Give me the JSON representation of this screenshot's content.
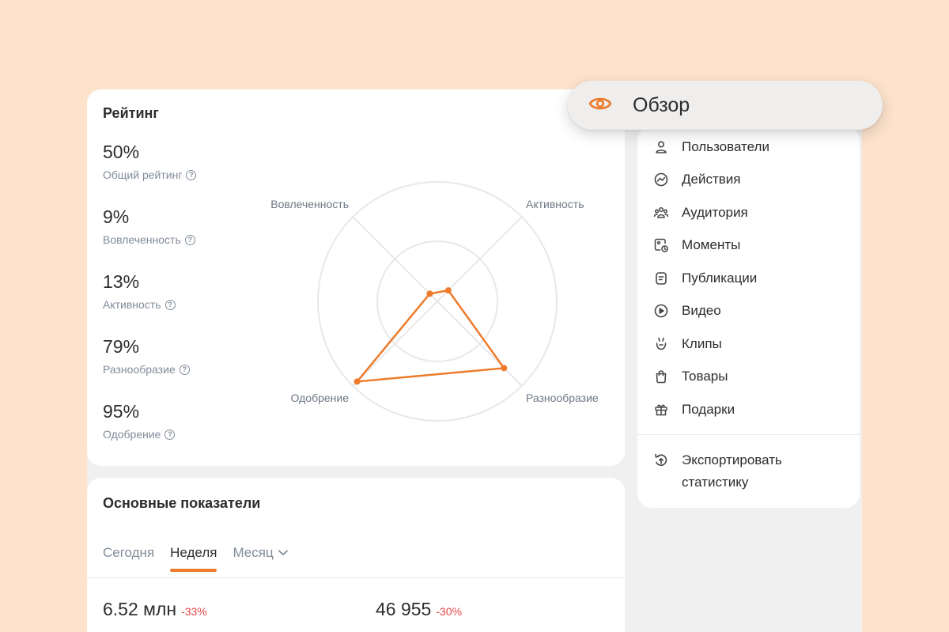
{
  "rating": {
    "title": "Рейтинг",
    "stats": [
      {
        "value": "50%",
        "label": "Общий рейтинг"
      },
      {
        "value": "9%",
        "label": "Вовлеченность"
      },
      {
        "value": "13%",
        "label": "Активность"
      },
      {
        "value": "79%",
        "label": "Разнообразие"
      },
      {
        "value": "95%",
        "label": "Одобрение"
      }
    ],
    "radar_axes": {
      "top_left": "Вовлеченность",
      "top_right": "Активность",
      "bottom_right": "Разнообразие",
      "bottom_left": "Одобрение"
    },
    "radar_values": {
      "engagement": 9,
      "activity": 13,
      "diversity": 79,
      "approval": 95
    },
    "accent_color": "#ed7b2c"
  },
  "metrics": {
    "title": "Основные показатели",
    "tabs": [
      "Сегодня",
      "Неделя",
      "Месяц"
    ],
    "active_tab": "Неделя",
    "items": [
      {
        "value": "6.52 млн",
        "delta": "-33%"
      },
      {
        "value": "46 955",
        "delta": "-30%"
      }
    ]
  },
  "nav": {
    "active": {
      "label": "Обзор",
      "icon": "eye-icon"
    },
    "items": [
      {
        "label": "Пользователи",
        "icon": "user-icon"
      },
      {
        "label": "Действия",
        "icon": "activity-icon"
      },
      {
        "label": "Аудитория",
        "icon": "audience-icon"
      },
      {
        "label": "Моменты",
        "icon": "moments-icon"
      },
      {
        "label": "Публикации",
        "icon": "post-icon"
      },
      {
        "label": "Видео",
        "icon": "video-icon"
      },
      {
        "label": "Клипы",
        "icon": "clips-icon"
      },
      {
        "label": "Товары",
        "icon": "bag-icon"
      },
      {
        "label": "Подарки",
        "icon": "gift-icon"
      }
    ],
    "export_label": "Экспортировать статистику",
    "export_icon": "export-icon"
  }
}
